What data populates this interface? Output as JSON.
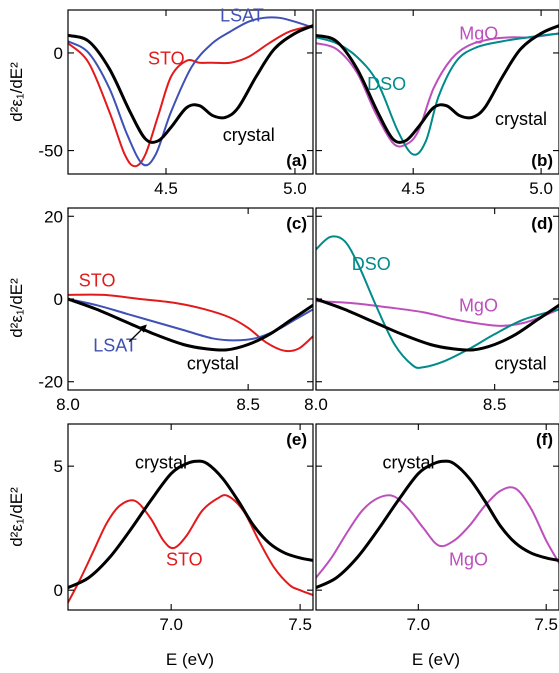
{
  "figure": {
    "ylabel_rows": [
      "d²ε₁/dE²",
      "d²ε₁/dE²",
      "d²ε₁/dE²"
    ],
    "xlabel": "E (eV)"
  },
  "colors": {
    "crystal": "#000000",
    "STO": "#e31a1c",
    "LSAT": "#3f51b5",
    "DSO": "#008b8b",
    "MgO": "#bd4fbd"
  },
  "chart_data": [
    {
      "id": "a",
      "type": "line",
      "panel_label": "(a)",
      "xlim": [
        4.12,
        5.07
      ],
      "ylim": [
        -62,
        22
      ],
      "x_ticks": [
        4.5,
        5.0
      ],
      "x_tick_labels": [
        "4.5",
        "5.0"
      ],
      "show_x_tick_labels": true,
      "y_ticks": [
        -50,
        0
      ],
      "y_tick_labels": [
        "-50",
        "0"
      ],
      "show_y_tick_labels": true,
      "series": [
        {
          "name": "STO",
          "color_key": "STO",
          "width": 2.0,
          "x": [
            4.12,
            4.2,
            4.28,
            4.34,
            4.38,
            4.42,
            4.47,
            4.52,
            4.58,
            4.63,
            4.68,
            4.75,
            4.82,
            4.9,
            4.98,
            5.07
          ],
          "y": [
            5,
            -5,
            -30,
            -52,
            -58,
            -52,
            -32,
            -12,
            -4,
            -5,
            -5,
            -5,
            -2,
            5,
            11,
            14
          ]
        },
        {
          "name": "LSAT",
          "color_key": "LSAT",
          "width": 2.0,
          "x": [
            4.12,
            4.2,
            4.28,
            4.35,
            4.41,
            4.46,
            4.52,
            4.6,
            4.68,
            4.75,
            4.82,
            4.88,
            4.94,
            5.0,
            5.07
          ],
          "y": [
            6,
            0,
            -18,
            -42,
            -57,
            -52,
            -30,
            -7,
            5,
            11,
            16,
            18,
            18,
            16,
            13
          ]
        },
        {
          "name": "crystal",
          "color_key": "crystal",
          "width": 3.0,
          "x": [
            4.12,
            4.2,
            4.28,
            4.36,
            4.42,
            4.47,
            4.52,
            4.58,
            4.63,
            4.68,
            4.73,
            4.78,
            4.85,
            4.92,
            5.0,
            5.07
          ],
          "y": [
            9,
            6,
            -8,
            -30,
            -44,
            -45,
            -38,
            -28,
            -27,
            -32,
            -33,
            -28,
            -12,
            2,
            10,
            14
          ]
        }
      ],
      "annotations": [
        {
          "text": "LSAT",
          "color_key": "LSAT",
          "x": 4.71,
          "y": 16
        },
        {
          "text": "STO",
          "color_key": "STO",
          "x": 4.43,
          "y": -6
        },
        {
          "text": "crystal",
          "color_key": "crystal",
          "x": 4.72,
          "y": -45
        }
      ]
    },
    {
      "id": "b",
      "type": "line",
      "panel_label": "(b)",
      "xlim": [
        4.12,
        5.07
      ],
      "ylim": [
        -62,
        22
      ],
      "x_ticks": [
        4.5,
        5.0
      ],
      "x_tick_labels": [
        "4.5",
        "5.0"
      ],
      "show_x_tick_labels": true,
      "y_ticks": [
        -50,
        0
      ],
      "y_tick_labels": [
        "-50",
        "0"
      ],
      "show_y_tick_labels": false,
      "series": [
        {
          "name": "MgO",
          "color_key": "MgO",
          "width": 2.0,
          "x": [
            4.12,
            4.2,
            4.28,
            4.35,
            4.42,
            4.47,
            4.52,
            4.58,
            4.65,
            4.72,
            4.8,
            4.88,
            4.96,
            5.07
          ],
          "y": [
            5,
            2,
            -10,
            -30,
            -46,
            -47,
            -40,
            -18,
            -3,
            4,
            7,
            8,
            8,
            10
          ]
        },
        {
          "name": "DSO",
          "color_key": "DSO",
          "width": 2.0,
          "x": [
            4.12,
            4.2,
            4.28,
            4.36,
            4.44,
            4.5,
            4.55,
            4.6,
            4.67,
            4.75,
            4.85,
            4.95,
            5.07
          ],
          "y": [
            8,
            5,
            -2,
            -15,
            -40,
            -52,
            -45,
            -22,
            -4,
            3,
            6,
            8,
            10
          ]
        },
        {
          "name": "crystal",
          "color_key": "crystal",
          "width": 3.0,
          "x": [
            4.12,
            4.2,
            4.28,
            4.36,
            4.42,
            4.47,
            4.52,
            4.58,
            4.63,
            4.68,
            4.73,
            4.78,
            4.85,
            4.92,
            5.0,
            5.07
          ],
          "y": [
            9,
            6,
            -8,
            -30,
            -44,
            -45,
            -38,
            -28,
            -27,
            -32,
            -33,
            -28,
            -12,
            2,
            10,
            14
          ]
        }
      ],
      "annotations": [
        {
          "text": "MgO",
          "color_key": "MgO",
          "x": 4.68,
          "y": 7
        },
        {
          "text": "DSO",
          "color_key": "DSO",
          "x": 4.32,
          "y": -19
        },
        {
          "text": "crystal",
          "color_key": "crystal",
          "x": 4.82,
          "y": -37
        }
      ]
    },
    {
      "id": "c",
      "type": "line",
      "panel_label": "(c)",
      "xlim": [
        8.0,
        8.68
      ],
      "ylim": [
        -22,
        22
      ],
      "x_ticks": [
        8.0,
        8.5
      ],
      "x_tick_labels": [
        "8.0",
        "8.5"
      ],
      "show_x_tick_labels": true,
      "y_ticks": [
        -20,
        0,
        20
      ],
      "y_tick_labels": [
        "-20",
        "0",
        "20"
      ],
      "show_y_tick_labels": true,
      "series": [
        {
          "name": "STO",
          "color_key": "STO",
          "width": 2.0,
          "x": [
            8.0,
            8.1,
            8.2,
            8.3,
            8.38,
            8.45,
            8.5,
            8.55,
            8.6,
            8.64,
            8.68
          ],
          "y": [
            1,
            1,
            0,
            -1,
            -2.5,
            -4.5,
            -7,
            -10.5,
            -12.5,
            -12,
            -9
          ]
        },
        {
          "name": "LSAT",
          "color_key": "LSAT",
          "width": 2.0,
          "x": [
            8.0,
            8.08,
            8.16,
            8.24,
            8.32,
            8.4,
            8.46,
            8.52,
            8.58,
            8.63,
            8.68
          ],
          "y": [
            0,
            -1.5,
            -3.5,
            -5.5,
            -7.5,
            -9.5,
            -10,
            -9.5,
            -7.5,
            -5,
            -2.5
          ]
        },
        {
          "name": "crystal",
          "color_key": "crystal",
          "width": 3.0,
          "x": [
            8.0,
            8.08,
            8.16,
            8.24,
            8.32,
            8.38,
            8.44,
            8.5,
            8.56,
            8.62,
            8.68
          ],
          "y": [
            0,
            -2.5,
            -5.5,
            -8.5,
            -11,
            -12,
            -12.3,
            -11,
            -8.5,
            -5,
            -1.5
          ]
        }
      ],
      "annotations": [
        {
          "text": "STO",
          "color_key": "STO",
          "x": 8.03,
          "y": 3
        },
        {
          "text": "LSAT",
          "color_key": "LSAT",
          "x": 8.07,
          "y": -12.7
        },
        {
          "text": "crystal",
          "color_key": "crystal",
          "x": 8.33,
          "y": -17
        }
      ],
      "arrow": {
        "color_key": "crystal",
        "from": [
          8.17,
          -10.3
        ],
        "to": [
          8.215,
          -6.5
        ]
      }
    },
    {
      "id": "d",
      "type": "line",
      "panel_label": "(d)",
      "xlim": [
        8.0,
        8.68
      ],
      "ylim": [
        -22,
        22
      ],
      "x_ticks": [
        8.0,
        8.5
      ],
      "x_tick_labels": [
        "8.0",
        "8.5"
      ],
      "show_x_tick_labels": true,
      "y_ticks": [
        -20,
        0,
        20
      ],
      "y_tick_labels": [
        "-20",
        "0",
        "20"
      ],
      "show_y_tick_labels": false,
      "series": [
        {
          "name": "MgO",
          "color_key": "MgO",
          "width": 2.0,
          "x": [
            8.0,
            8.1,
            8.2,
            8.3,
            8.38,
            8.46,
            8.52,
            8.58,
            8.63,
            8.68
          ],
          "y": [
            -0.5,
            -1,
            -2,
            -3.2,
            -4.8,
            -6,
            -6.5,
            -5.8,
            -4.3,
            -2.5
          ]
        },
        {
          "name": "DSO",
          "color_key": "DSO",
          "width": 2.0,
          "x": [
            8.0,
            8.04,
            8.08,
            8.12,
            8.17,
            8.22,
            8.27,
            8.3,
            8.36,
            8.43,
            8.5,
            8.58,
            8.68
          ],
          "y": [
            12,
            15,
            14,
            8,
            -2,
            -11,
            -16,
            -16.5,
            -15,
            -12,
            -8.5,
            -5,
            -2.5
          ]
        },
        {
          "name": "crystal",
          "color_key": "crystal",
          "width": 3.0,
          "x": [
            8.0,
            8.08,
            8.16,
            8.24,
            8.32,
            8.38,
            8.44,
            8.5,
            8.56,
            8.62,
            8.68
          ],
          "y": [
            0,
            -2.5,
            -5.5,
            -8.5,
            -11,
            -12,
            -12.3,
            -11,
            -8.5,
            -5,
            -1.5
          ]
        }
      ],
      "annotations": [
        {
          "text": "DSO",
          "color_key": "DSO",
          "x": 8.1,
          "y": 7
        },
        {
          "text": "MgO",
          "color_key": "MgO",
          "x": 8.4,
          "y": -3
        },
        {
          "text": "crystal",
          "color_key": "crystal",
          "x": 8.5,
          "y": -17
        }
      ]
    },
    {
      "id": "e",
      "type": "line",
      "panel_label": "(e)",
      "xlim": [
        6.6,
        7.55
      ],
      "ylim": [
        -0.8,
        6.7
      ],
      "x_ticks": [
        7.0,
        7.5
      ],
      "x_tick_labels": [
        "7.0",
        "7.5"
      ],
      "show_x_tick_labels": true,
      "y_ticks": [
        0,
        5
      ],
      "y_tick_labels": [
        "0",
        "5"
      ],
      "show_y_tick_labels": true,
      "series": [
        {
          "name": "STO",
          "color_key": "STO",
          "width": 2.0,
          "x": [
            6.6,
            6.65,
            6.7,
            6.75,
            6.8,
            6.86,
            6.92,
            6.97,
            7.01,
            7.06,
            7.12,
            7.18,
            7.22,
            7.28,
            7.34,
            7.4,
            7.46,
            7.5,
            7.55
          ],
          "y": [
            -0.5,
            0.5,
            1.6,
            2.7,
            3.4,
            3.6,
            2.9,
            2.0,
            1.7,
            2.2,
            3.2,
            3.7,
            3.8,
            3.2,
            2.0,
            0.9,
            0.2,
            0,
            -0.2
          ]
        },
        {
          "name": "crystal",
          "color_key": "crystal",
          "width": 3.0,
          "x": [
            6.6,
            6.68,
            6.76,
            6.84,
            6.92,
            7.0,
            7.06,
            7.1,
            7.14,
            7.2,
            7.26,
            7.32,
            7.38,
            7.44,
            7.5,
            7.55
          ],
          "y": [
            0.1,
            0.5,
            1.3,
            2.4,
            3.6,
            4.7,
            5.1,
            5.2,
            5.1,
            4.5,
            3.6,
            2.6,
            1.9,
            1.5,
            1.3,
            1.2
          ]
        }
      ],
      "annotations": [
        {
          "text": "crystal",
          "color_key": "crystal",
          "x": 6.86,
          "y": 4.9
        },
        {
          "text": "STO",
          "color_key": "STO",
          "x": 6.98,
          "y": 1.0
        }
      ]
    },
    {
      "id": "f",
      "type": "line",
      "panel_label": "(f)",
      "xlim": [
        6.6,
        7.55
      ],
      "ylim": [
        -0.8,
        6.7
      ],
      "x_ticks": [
        7.0,
        7.5
      ],
      "x_tick_labels": [
        "7.0",
        "7.5"
      ],
      "show_x_tick_labels": true,
      "y_ticks": [
        0,
        5
      ],
      "y_tick_labels": [
        "0",
        "5"
      ],
      "show_y_tick_labels": false,
      "series": [
        {
          "name": "MgO",
          "color_key": "MgO",
          "width": 2.0,
          "x": [
            6.6,
            6.66,
            6.72,
            6.78,
            6.84,
            6.9,
            6.96,
            7.02,
            7.08,
            7.14,
            7.2,
            7.26,
            7.32,
            7.38,
            7.44,
            7.5,
            7.55
          ],
          "y": [
            0.5,
            1.3,
            2.3,
            3.2,
            3.7,
            3.8,
            3.3,
            2.5,
            1.8,
            2.0,
            2.6,
            3.4,
            4.0,
            4.1,
            3.3,
            2.0,
            1.1
          ]
        },
        {
          "name": "crystal",
          "color_key": "crystal",
          "width": 3.0,
          "x": [
            6.6,
            6.68,
            6.76,
            6.84,
            6.92,
            7.0,
            7.06,
            7.1,
            7.14,
            7.2,
            7.26,
            7.32,
            7.38,
            7.44,
            7.5,
            7.55
          ],
          "y": [
            0.1,
            0.5,
            1.3,
            2.4,
            3.6,
            4.7,
            5.1,
            5.2,
            5.1,
            4.5,
            3.6,
            2.6,
            1.9,
            1.5,
            1.3,
            1.2
          ]
        }
      ],
      "annotations": [
        {
          "text": "crystal",
          "color_key": "crystal",
          "x": 6.86,
          "y": 4.9
        },
        {
          "text": "MgO",
          "color_key": "MgO",
          "x": 7.12,
          "y": 1.0
        }
      ]
    }
  ]
}
